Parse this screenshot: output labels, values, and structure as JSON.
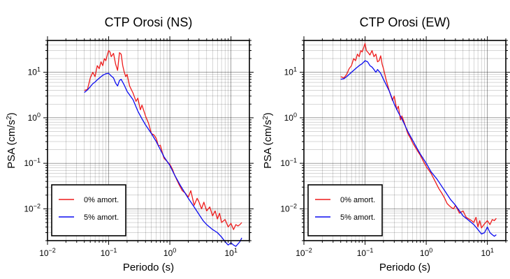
{
  "chart_data": [
    {
      "type": "line",
      "title": "CTP Orosi (NS)",
      "xlabel": "Periodo (s)",
      "ylabel": "PSA (cm/s2)",
      "xscale": "log",
      "yscale": "log",
      "xlim": [
        0.01,
        20
      ],
      "ylim": [
        0.002,
        50
      ],
      "grid": true,
      "legend_position": "bottom-left",
      "series": [
        {
          "name": "0% amort.",
          "color": "#ee1c1c",
          "x": [
            0.04,
            0.045,
            0.05,
            0.055,
            0.06,
            0.065,
            0.07,
            0.075,
            0.08,
            0.085,
            0.09,
            0.095,
            0.1,
            0.105,
            0.11,
            0.12,
            0.13,
            0.14,
            0.15,
            0.16,
            0.17,
            0.18,
            0.19,
            0.2,
            0.22,
            0.25,
            0.28,
            0.3,
            0.33,
            0.35,
            0.4,
            0.45,
            0.5,
            0.55,
            0.6,
            0.65,
            0.7,
            0.8,
            0.9,
            1.0,
            1.1,
            1.2,
            1.4,
            1.6,
            1.8,
            2.0,
            2.2,
            2.5,
            2.8,
            3.0,
            3.3,
            3.6,
            4.0,
            4.5,
            5.0,
            5.5,
            6.0,
            6.5,
            7.0,
            8.0,
            9.0,
            10.0,
            11.0,
            12.0,
            13.0,
            14.0,
            15.0
          ],
          "y": [
            4.0,
            4.2,
            7.5,
            10.0,
            8.0,
            14.0,
            12.0,
            17.0,
            14.0,
            20.0,
            18.0,
            24.0,
            30.0,
            28.0,
            22.0,
            26.0,
            15.0,
            11.0,
            27.0,
            25.0,
            14.0,
            10.0,
            8.0,
            9.0,
            5.0,
            3.5,
            2.3,
            2.7,
            1.5,
            1.9,
            1.1,
            0.75,
            0.45,
            0.42,
            0.35,
            0.24,
            0.25,
            0.13,
            0.11,
            0.095,
            0.075,
            0.055,
            0.035,
            0.025,
            0.022,
            0.018,
            0.025,
            0.012,
            0.017,
            0.014,
            0.01,
            0.014,
            0.009,
            0.011,
            0.007,
            0.009,
            0.006,
            0.008,
            0.005,
            0.0058,
            0.004,
            0.0048,
            0.0035,
            0.0045,
            0.0042,
            0.0045,
            0.005
          ]
        },
        {
          "name": "5% amort.",
          "color": "#0b0bf0",
          "x": [
            0.04,
            0.045,
            0.05,
            0.055,
            0.06,
            0.065,
            0.07,
            0.08,
            0.09,
            0.1,
            0.11,
            0.12,
            0.13,
            0.14,
            0.15,
            0.16,
            0.18,
            0.2,
            0.25,
            0.3,
            0.35,
            0.4,
            0.5,
            0.6,
            0.7,
            0.8,
            1.0,
            1.2,
            1.5,
            2.0,
            2.5,
            3.0,
            3.5,
            4.0,
            5.0,
            6.0,
            7.0,
            8.0,
            9.0,
            10.0,
            11.0,
            12.0,
            14.0,
            15.0
          ],
          "y": [
            3.6,
            4.1,
            4.8,
            5.6,
            6.1,
            6.8,
            7.4,
            8.6,
            9.3,
            9.5,
            8.3,
            7.5,
            5.8,
            5.0,
            6.6,
            7.0,
            5.2,
            3.8,
            2.5,
            1.4,
            0.95,
            0.7,
            0.45,
            0.3,
            0.2,
            0.14,
            0.09,
            0.055,
            0.032,
            0.017,
            0.011,
            0.0075,
            0.0055,
            0.0045,
            0.0035,
            0.003,
            0.0024,
            0.0019,
            0.0016,
            0.0018,
            0.0016,
            0.0015,
            0.0019,
            0.0023
          ]
        }
      ]
    },
    {
      "type": "line",
      "title": "CTP Orosi (EW)",
      "xlabel": "Periodo (s)",
      "ylabel": "PSA (cm/s2)",
      "xscale": "log",
      "yscale": "log",
      "xlim": [
        0.01,
        20
      ],
      "ylim": [
        0.002,
        50
      ],
      "grid": true,
      "legend_position": "bottom-left",
      "series": [
        {
          "name": "0% amort.",
          "color": "#ee1c1c",
          "x": [
            0.04,
            0.045,
            0.05,
            0.055,
            0.06,
            0.065,
            0.07,
            0.075,
            0.08,
            0.085,
            0.09,
            0.095,
            0.1,
            0.105,
            0.11,
            0.12,
            0.13,
            0.14,
            0.15,
            0.16,
            0.17,
            0.18,
            0.19,
            0.2,
            0.22,
            0.25,
            0.28,
            0.3,
            0.33,
            0.35,
            0.38,
            0.4,
            0.45,
            0.5,
            0.55,
            0.6,
            0.7,
            0.8,
            0.9,
            1.0,
            1.2,
            1.4,
            1.6,
            1.8,
            2.0,
            2.2,
            2.5,
            2.8,
            3.0,
            3.5,
            4.0,
            4.5,
            5.0,
            5.5,
            6.0,
            6.5,
            7.0,
            7.5,
            8.0,
            9.0,
            10.0,
            11.0,
            12.0,
            13.0,
            14.0
          ],
          "y": [
            8.0,
            7.5,
            9.0,
            12.0,
            14.0,
            20.0,
            18.0,
            25.0,
            22.0,
            30.0,
            28.0,
            35.0,
            43.0,
            30.0,
            28.0,
            24.0,
            30.0,
            22.0,
            25.0,
            17.0,
            18.0,
            23.0,
            15.0,
            12.0,
            7.0,
            3.8,
            2.4,
            3.0,
            1.5,
            1.8,
            0.9,
            1.1,
            0.7,
            0.45,
            0.36,
            0.28,
            0.2,
            0.15,
            0.11,
            0.085,
            0.06,
            0.04,
            0.028,
            0.022,
            0.017,
            0.013,
            0.011,
            0.01,
            0.012,
            0.008,
            0.009,
            0.0065,
            0.006,
            0.0055,
            0.005,
            0.0065,
            0.004,
            0.0055,
            0.0038,
            0.0047,
            0.0055,
            0.0045,
            0.0058,
            0.0055,
            0.0062
          ]
        },
        {
          "name": "5% amort.",
          "color": "#0b0bf0",
          "x": [
            0.04,
            0.045,
            0.05,
            0.055,
            0.06,
            0.065,
            0.07,
            0.08,
            0.09,
            0.1,
            0.11,
            0.12,
            0.13,
            0.14,
            0.15,
            0.16,
            0.18,
            0.2,
            0.25,
            0.3,
            0.35,
            0.4,
            0.5,
            0.6,
            0.7,
            0.8,
            1.0,
            1.2,
            1.5,
            2.0,
            2.5,
            3.0,
            3.5,
            4.0,
            5.0,
            6.0,
            7.0,
            8.0,
            9.0,
            10.0,
            11.0,
            12.0,
            13.0,
            14.0
          ],
          "y": [
            7.0,
            7.2,
            8.0,
            9.0,
            10.0,
            11.0,
            12.0,
            14.0,
            15.5,
            18.0,
            17.0,
            14.0,
            13.0,
            11.5,
            10.0,
            11.5,
            9.5,
            7.0,
            3.8,
            2.0,
            1.3,
            0.95,
            0.5,
            0.32,
            0.22,
            0.16,
            0.1,
            0.065,
            0.045,
            0.025,
            0.016,
            0.012,
            0.009,
            0.007,
            0.0055,
            0.0045,
            0.0035,
            0.0028,
            0.003,
            0.004,
            0.003,
            0.0027,
            0.0025,
            0.0027
          ]
        }
      ]
    }
  ]
}
